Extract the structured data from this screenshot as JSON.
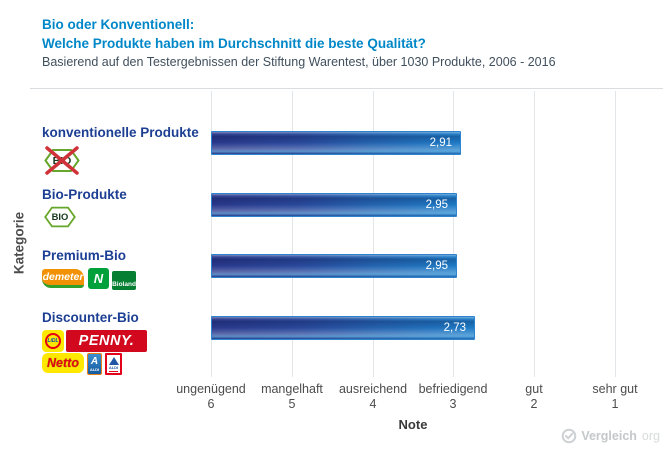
{
  "header": {
    "title_line1": "Bio oder Konventionell:",
    "title_line2": "Welche Produkte haben im Durchschnitt die beste Qualität?",
    "subtitle": "Basierend auf den Testergebnissen der Stiftung Warentest, über 1030 Produkte, 2006 - 2016"
  },
  "chart_data": {
    "type": "bar",
    "orientation": "horizontal",
    "title": "Bio oder Konventionell: Welche Produkte haben im Durchschnitt die beste Qualität?",
    "subtitle": "Basierend auf den Testergebnissen der Stiftung Warentest, über 1030 Produkte, 2006 - 2016",
    "categories": [
      "konventionelle Produkte",
      "Bio-Produkte",
      "Premium-Bio",
      "Discounter-Bio"
    ],
    "values": [
      2.91,
      2.95,
      2.95,
      2.73
    ],
    "value_labels": [
      "2,91",
      "2,95",
      "2,95",
      "2,73"
    ],
    "xlabel": "Note",
    "ylabel": "Kategorie",
    "axis_min": 1,
    "axis_max": 6,
    "axis_note": "Schulnoten-Skala, 6 links bis 1 rechts; Balken beginnen bei 6",
    "grid": true,
    "x_ticks": [
      {
        "label": "ungenügend",
        "value": "6"
      },
      {
        "label": "mangelhaft",
        "value": "5"
      },
      {
        "label": "ausreichend",
        "value": "4"
      },
      {
        "label": "befriedigend",
        "value": "3"
      },
      {
        "label": "gut",
        "value": "2"
      },
      {
        "label": "sehr gut",
        "value": "1"
      }
    ],
    "bar_color_left": "#2b3a8e",
    "bar_color_right": "#1e7ec9",
    "value_label_color": "#ffffff"
  },
  "category_logos": {
    "konventionelle_produkte": [
      "bio-siegel-crossed"
    ],
    "bio_produkte": [
      "bio-siegel"
    ],
    "premium_bio": [
      "demeter",
      "naturland",
      "bioland"
    ],
    "discounter_bio": [
      "lidl",
      "penny",
      "netto",
      "aldi-sued",
      "aldi-nord"
    ]
  },
  "logo_texts": {
    "bio_siegel": "BIO",
    "demeter": "demeter",
    "naturland": "N",
    "bioland": "Bioland",
    "lidl": "LiDL",
    "penny": "PENNY.",
    "netto": "Netto",
    "aldi_sued_a": "A",
    "aldi_sued": "ALDI",
    "aldi_nord": "ALDI"
  },
  "footer": {
    "brand": "Vergleich",
    "brand_suffix": "org"
  },
  "colors": {
    "title_blue": "#0087c8",
    "subtitle_gray": "#41505e",
    "category_navy": "#1c3f93",
    "axis_gray": "#4c4c4c",
    "gridline": "#e3e6e8"
  }
}
